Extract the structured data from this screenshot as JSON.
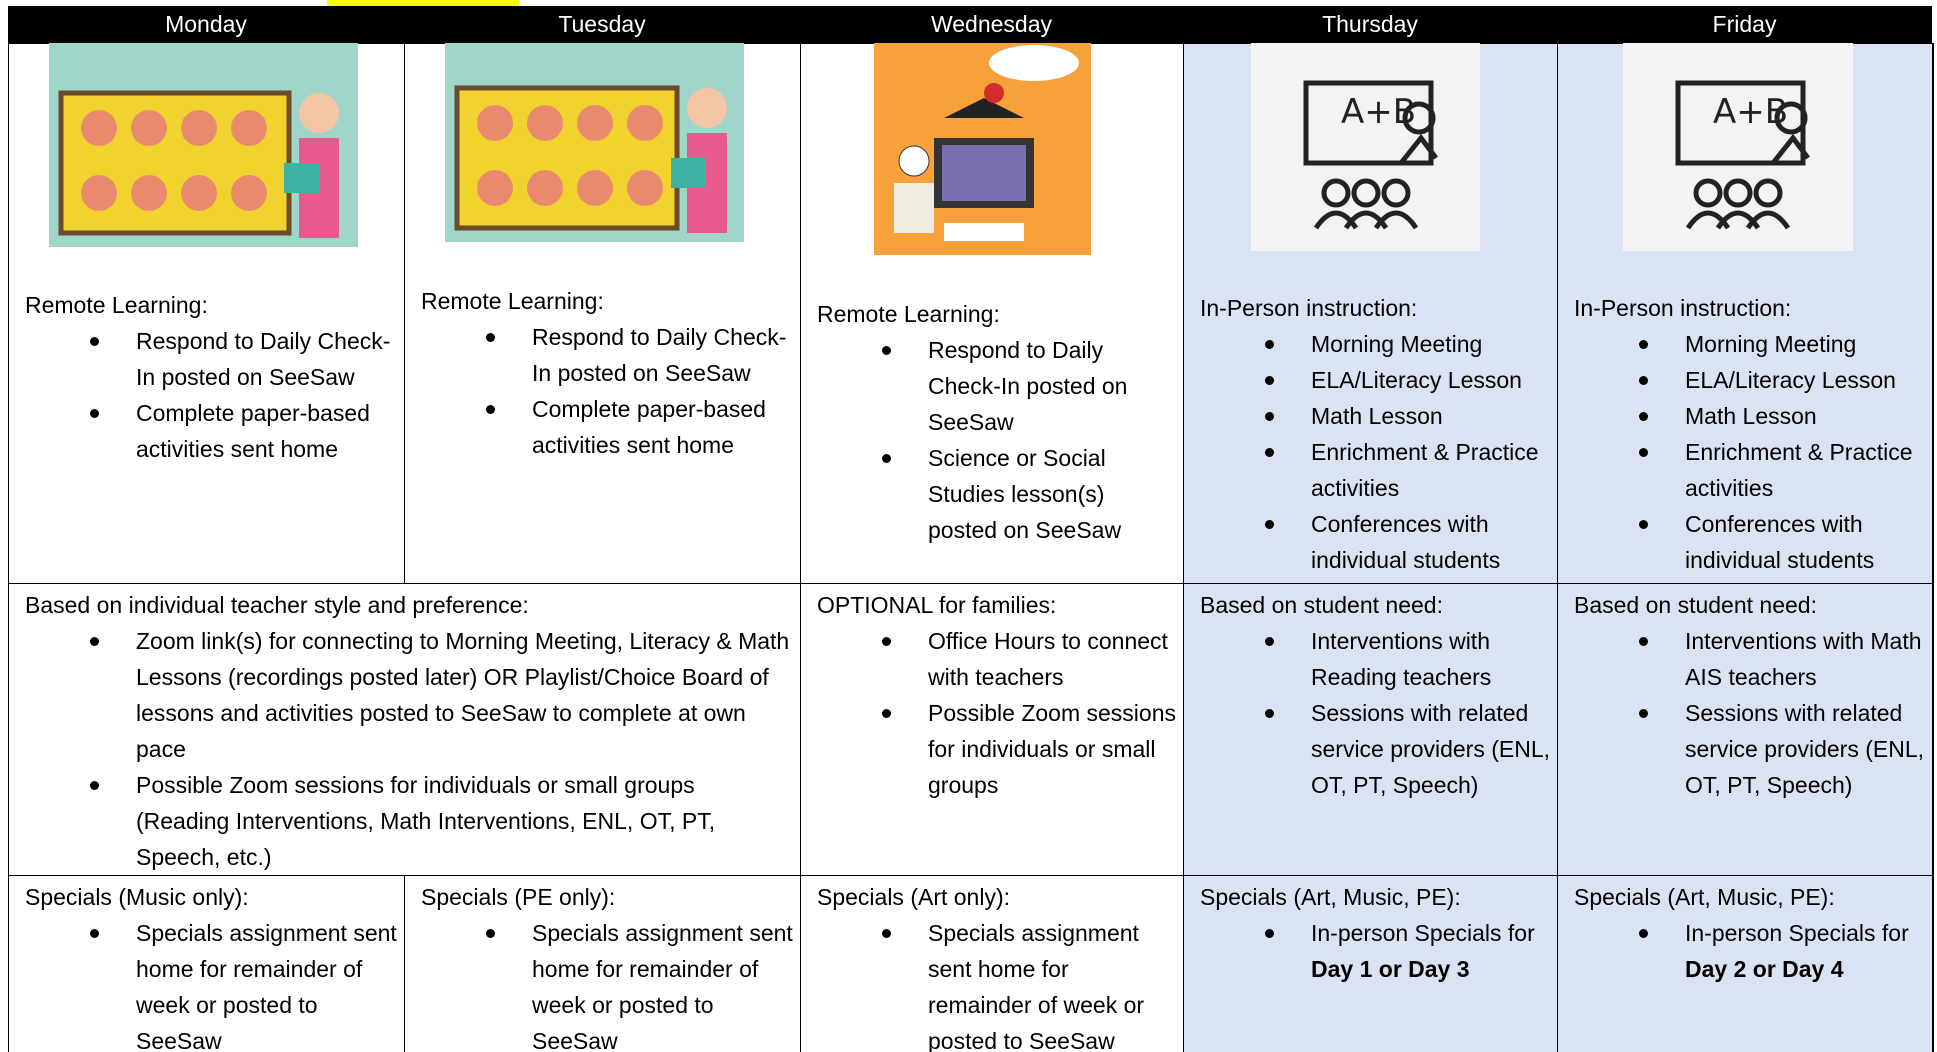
{
  "days": [
    "Monday",
    "Tuesday",
    "Wednesday",
    "Thursday",
    "Friday"
  ],
  "learning": [
    {
      "heading": "Remote Learning:",
      "items": [
        "Respond to Daily Check-In posted on SeeSaw",
        "Complete paper-based activities sent home"
      ]
    },
    {
      "heading": "Remote Learning:",
      "items": [
        "Respond to Daily Check-In posted on SeeSaw",
        "Complete paper-based activities sent home"
      ]
    },
    {
      "heading": "Remote Learning:",
      "items": [
        "Respond to Daily Check-In posted on SeeSaw",
        "Science or Social Studies lesson(s) posted on SeeSaw"
      ]
    },
    {
      "heading": "In-Person instruction:",
      "items": [
        "Morning Meeting",
        "ELA/Literacy Lesson",
        "Math Lesson",
        "Enrichment & Practice activities",
        "Conferences with individual students"
      ]
    },
    {
      "heading": "In-Person instruction:",
      "items": [
        "Morning Meeting",
        "ELA/Literacy Lesson",
        "Math Lesson",
        "Enrichment & Practice activities",
        "Conferences with individual students"
      ]
    }
  ],
  "support": [
    {
      "heading": "Based on individual teacher style and preference:",
      "items": [
        "Zoom link(s) for connecting to Morning Meeting, Literacy & Math Lessons (recordings posted later) OR Playlist/Choice Board of lessons and activities posted to SeeSaw to complete at own pace",
        "Possible Zoom sessions for individuals or small groups (Reading Interventions, Math Interventions, ENL, OT, PT, Speech, etc.)"
      ]
    },
    {
      "heading": "OPTIONAL for families:",
      "items": [
        "Office Hours to connect with teachers",
        "Possible Zoom sessions for individuals or small groups"
      ]
    },
    {
      "heading": "Based on student need:",
      "items": [
        "Interventions with Reading teachers",
        "Sessions with related service providers (ENL, OT, PT, Speech)"
      ]
    },
    {
      "heading": "Based on student need:",
      "items": [
        "Interventions with Math AIS teachers",
        "Sessions with related service providers (ENL, OT, PT, Speech)"
      ]
    }
  ],
  "specials": [
    {
      "heading": "Specials (Music only):",
      "items": [
        "Specials assignment sent home for remainder of week or posted to SeeSaw"
      ]
    },
    {
      "heading": "Specials (PE only):",
      "items": [
        "Specials assignment sent home for remainder of week or posted to SeeSaw"
      ]
    },
    {
      "heading": "Specials (Art only):",
      "items": [
        "Specials assignment sent home for remainder of week or posted to SeeSaw"
      ]
    },
    {
      "heading": "Specials (Art, Music, PE):",
      "items": [
        {
          "text": "In-person Specials for ",
          "bold": "Day 1 or Day 3"
        }
      ]
    },
    {
      "heading": "Specials (Art, Music, PE):",
      "items": [
        {
          "text": "In-person Specials for ",
          "bold": "Day 2 or Day 4"
        }
      ]
    }
  ]
}
